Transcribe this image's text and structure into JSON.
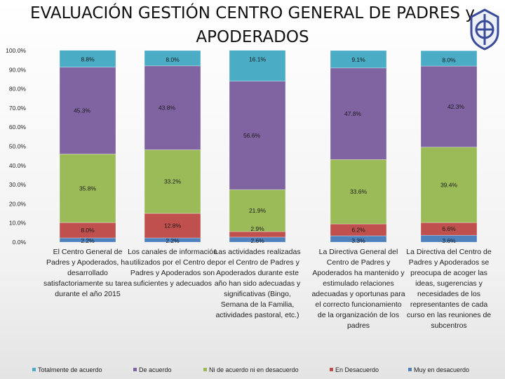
{
  "title": "EVALUACIÓN GESTIÓN CENTRO GENERAL DE PADRES y APODERADOS",
  "colors": {
    "muy_en_desacuerdo": "#4f81bd",
    "en_desacuerdo": "#c0504d",
    "ni_de_acuerdo": "#9bbb59",
    "de_acuerdo": "#8064a2",
    "totalmente_de_acuerdo": "#4bacc6"
  },
  "chart_data": {
    "type": "bar",
    "stacked": true,
    "ylim": [
      0,
      100
    ],
    "yticks": [
      "0.0%",
      "10.0%",
      "20.0%",
      "30.0%",
      "40.0%",
      "50.0%",
      "60.0%",
      "70.0%",
      "80.0%",
      "90.0%",
      "100.0%"
    ],
    "categories": [
      "El Centro General de Padres y Apoderados, ha desarrollado satisfactoriamente su tarea durante el año 2015",
      "Los canales de información utilizados por el Centro de Padres y Apoderados son suficientes y adecuados",
      "Las actividades realizadas por el Centro de Padres y Apoderados durante este año han sido adecuadas y significativas (Bingo, Semana de la Familia, actividades pastoral, etc.)",
      "La Directiva General del Centro de Padres y Apoderados ha mantenido y estimulado relaciones adecuadas y oportunas para el correcto funcionamiento de la organización de los padres",
      "La Directiva del Centro de Padres y Apoderados se preocupa de acoger las ideas, sugerencias y necesidades de los representantes de cada curso en las reuniones de subcentros"
    ],
    "series": [
      {
        "name": "Muy en desacuerdo",
        "color_key": "muy_en_desacuerdo",
        "values": [
          2.2,
          2.2,
          2.6,
          3.3,
          3.6
        ],
        "labels": [
          "2.2%",
          "2.2%",
          "2.6%",
          "3.3%",
          "3.6%"
        ]
      },
      {
        "name": "En Desacuerdo",
        "color_key": "en_desacuerdo",
        "values": [
          8.0,
          12.8,
          2.9,
          6.2,
          6.6
        ],
        "labels": [
          "8.0%",
          "12.8%",
          "2.9%",
          "6.2%",
          "6.6%"
        ]
      },
      {
        "name": "Ni de acuerdo ni en desacuerdo",
        "color_key": "ni_de_acuerdo",
        "values": [
          35.8,
          33.2,
          21.9,
          33.6,
          39.4
        ],
        "labels": [
          "35.8%",
          "33.2%",
          "21.9%",
          "33.6%",
          "39.4%"
        ]
      },
      {
        "name": "De acuerdo",
        "color_key": "de_acuerdo",
        "values": [
          45.3,
          43.8,
          56.6,
          47.8,
          42.3
        ],
        "labels": [
          "45.3%",
          "43.8%",
          "56.6%",
          "47.8%",
          "42.3%"
        ]
      },
      {
        "name": "Totalmente de acuerdo",
        "color_key": "totalmente_de_acuerdo",
        "values": [
          8.8,
          8.0,
          16.1,
          9.1,
          8.0
        ],
        "labels": [
          "8.8%",
          "8.0%",
          "16.1%",
          "9.1%",
          "8.0%"
        ]
      }
    ],
    "legend": {
      "placement": "bottom",
      "entries": [
        "Totalmente de acuerdo",
        "De acuerdo",
        "Ni de acuerdo ni en desacuerdo",
        "En Desacuerdo",
        "Muy en desacuerdo"
      ]
    },
    "grid": false
  }
}
